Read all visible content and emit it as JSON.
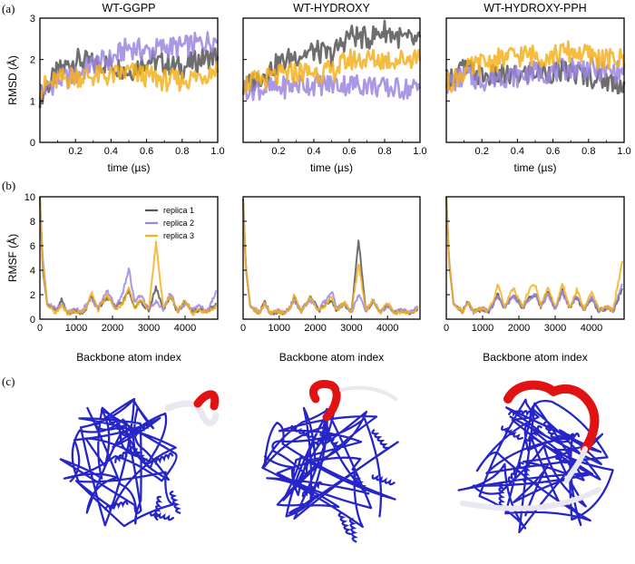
{
  "panel_labels": [
    "(a)",
    "(b)",
    "(c)"
  ],
  "legend": [
    "replica 1",
    "replica 2",
    "replica 3"
  ],
  "colors": {
    "replica1": "#555555",
    "replica2": "#9b86e0",
    "replica3": "#f5b01e",
    "protein_blue": "#2525c8",
    "flex_red": "#e01212",
    "flex_white": "#e8e8ee"
  },
  "rmsd_xlabel": "time (µs)",
  "rmsd_ylabel": "RMSD (Å)",
  "rmsf_xlabel": "Backbone atom index",
  "rmsf_ylabel": "RMSF (Å)",
  "rmsd_xticks": [
    "0.2",
    "0.4",
    "0.6",
    "0.8",
    "1.0"
  ],
  "rmsd_yticks": [
    "0",
    "1",
    "2",
    "3"
  ],
  "rmsf_xticks": [
    "0",
    "1000",
    "2000",
    "3000",
    "4000"
  ],
  "rmsf_yticks": [
    "0",
    "2",
    "4",
    "6",
    "8",
    "10"
  ],
  "structure_icons": [
    "protein-ribbon-icon",
    "protein-ribbon-icon",
    "protein-ribbon-icon"
  ],
  "chart_data": [
    {
      "type": "line",
      "title": "WT-GGPP",
      "xlabel": "time (µs)",
      "ylabel": "RMSD (Å)",
      "xlim": [
        0,
        1.0
      ],
      "ylim": [
        0,
        3
      ],
      "series": [
        {
          "name": "replica 1",
          "x": [
            0.0,
            0.1,
            0.2,
            0.3,
            0.4,
            0.5,
            0.6,
            0.7,
            0.8,
            0.9,
            1.0
          ],
          "values": [
            1.1,
            1.7,
            2.0,
            1.9,
            1.9,
            1.7,
            2.0,
            1.9,
            1.8,
            2.0,
            2.1
          ]
        },
        {
          "name": "replica 2",
          "x": [
            0.0,
            0.1,
            0.2,
            0.3,
            0.4,
            0.5,
            0.6,
            0.7,
            0.8,
            0.9,
            1.0
          ],
          "values": [
            1.2,
            1.5,
            1.6,
            1.9,
            2.0,
            2.3,
            2.2,
            2.3,
            2.3,
            2.4,
            2.5
          ]
        },
        {
          "name": "replica 3",
          "x": [
            0.0,
            0.1,
            0.2,
            0.3,
            0.4,
            0.5,
            0.6,
            0.7,
            0.8,
            0.9,
            1.0
          ],
          "values": [
            1.3,
            1.5,
            1.6,
            1.6,
            1.6,
            1.7,
            1.6,
            1.5,
            1.5,
            1.6,
            1.8
          ]
        }
      ]
    },
    {
      "type": "line",
      "title": "WT-HYDROXY",
      "xlabel": "time (µs)",
      "ylabel": "RMSD (Å)",
      "xlim": [
        0,
        1.0
      ],
      "ylim": [
        0,
        3
      ],
      "series": [
        {
          "name": "replica 1",
          "x": [
            0.0,
            0.1,
            0.2,
            0.3,
            0.4,
            0.5,
            0.6,
            0.7,
            0.8,
            0.9,
            1.0
          ],
          "values": [
            1.3,
            1.6,
            1.9,
            2.1,
            2.2,
            2.1,
            2.6,
            2.5,
            2.7,
            2.5,
            2.4
          ]
        },
        {
          "name": "replica 2",
          "x": [
            0.0,
            0.1,
            0.2,
            0.3,
            0.4,
            0.5,
            0.6,
            0.7,
            0.8,
            0.9,
            1.0
          ],
          "values": [
            1.3,
            1.3,
            1.3,
            1.4,
            1.4,
            1.4,
            1.4,
            1.4,
            1.3,
            1.3,
            1.3
          ]
        },
        {
          "name": "replica 3",
          "x": [
            0.0,
            0.1,
            0.2,
            0.3,
            0.4,
            0.5,
            0.6,
            0.7,
            0.8,
            0.9,
            1.0
          ],
          "values": [
            1.4,
            1.5,
            1.6,
            1.7,
            1.7,
            1.7,
            2.0,
            2.0,
            2.0,
            2.0,
            2.1
          ]
        }
      ]
    },
    {
      "type": "line",
      "title": "WT-HYDROXY-PPH",
      "xlabel": "time (µs)",
      "ylabel": "RMSD (Å)",
      "xlim": [
        0,
        1.0
      ],
      "ylim": [
        0,
        3
      ],
      "series": [
        {
          "name": "replica 1",
          "x": [
            0.0,
            0.1,
            0.2,
            0.3,
            0.4,
            0.5,
            0.6,
            0.7,
            0.8,
            0.9,
            1.0
          ],
          "values": [
            1.5,
            1.8,
            1.6,
            1.6,
            1.6,
            1.7,
            1.7,
            1.7,
            1.6,
            1.5,
            1.4
          ]
        },
        {
          "name": "replica 2",
          "x": [
            0.0,
            0.1,
            0.2,
            0.3,
            0.4,
            0.5,
            0.6,
            0.7,
            0.8,
            0.9,
            1.0
          ],
          "values": [
            1.4,
            1.6,
            1.5,
            1.6,
            1.6,
            1.7,
            1.7,
            1.8,
            1.8,
            1.7,
            1.7
          ]
        },
        {
          "name": "replica 3",
          "x": [
            0.0,
            0.1,
            0.2,
            0.3,
            0.4,
            0.5,
            0.6,
            0.7,
            0.8,
            0.9,
            1.0
          ],
          "values": [
            1.4,
            1.7,
            1.9,
            2.0,
            2.1,
            2.1,
            2.1,
            2.2,
            2.1,
            2.0,
            2.0
          ]
        }
      ]
    },
    {
      "type": "line",
      "xlabel": "Backbone atom index",
      "ylabel": "RMSF (Å)",
      "xlim": [
        0,
        4900
      ],
      "ylim": [
        0,
        10
      ],
      "series": [
        {
          "name": "replica 1",
          "x": [
            0,
            80,
            200,
            450,
            600,
            750,
            1000,
            1150,
            1300,
            1420,
            1600,
            1850,
            2100,
            2300,
            2450,
            2600,
            2800,
            3000,
            3200,
            3400,
            3600,
            3800,
            4000,
            4200,
            4400,
            4600,
            4850
          ],
          "values": [
            10.0,
            4.0,
            1.2,
            0.6,
            1.6,
            0.5,
            0.7,
            0.5,
            1.0,
            2.0,
            0.8,
            1.8,
            0.9,
            1.5,
            2.3,
            1.0,
            1.4,
            0.7,
            2.6,
            0.8,
            1.8,
            0.6,
            1.5,
            0.6,
            0.8,
            0.6,
            1.2
          ]
        },
        {
          "name": "replica 2",
          "x": [
            0,
            80,
            200,
            450,
            600,
            750,
            1000,
            1150,
            1300,
            1420,
            1600,
            1850,
            2100,
            2300,
            2450,
            2600,
            2800,
            3000,
            3200,
            3400,
            3600,
            3800,
            4000,
            4200,
            4400,
            4600,
            4850
          ],
          "values": [
            9.5,
            5.0,
            1.3,
            0.8,
            1.3,
            0.6,
            0.9,
            0.6,
            1.4,
            1.6,
            0.9,
            2.3,
            1.0,
            2.3,
            4.2,
            1.5,
            1.9,
            0.8,
            1.5,
            0.8,
            2.2,
            0.7,
            1.2,
            0.8,
            1.1,
            0.6,
            2.2
          ]
        },
        {
          "name": "replica 3",
          "x": [
            0,
            80,
            200,
            450,
            600,
            750,
            1000,
            1150,
            1300,
            1420,
            1600,
            1850,
            2100,
            2300,
            2450,
            2600,
            2800,
            3000,
            3200,
            3400,
            3600,
            3800,
            4000,
            4200,
            4400,
            4600,
            4850
          ],
          "values": [
            9.8,
            4.5,
            1.1,
            0.5,
            1.2,
            0.5,
            0.6,
            0.5,
            1.0,
            2.2,
            0.7,
            2.0,
            0.8,
            1.4,
            2.6,
            0.9,
            1.6,
            0.7,
            6.3,
            0.9,
            1.9,
            0.6,
            1.6,
            0.5,
            0.7,
            0.6,
            1.0
          ]
        }
      ]
    },
    {
      "type": "line",
      "xlabel": "Backbone atom index",
      "ylabel": "RMSF (Å)",
      "xlim": [
        0,
        4900
      ],
      "ylim": [
        0,
        10
      ],
      "series": [
        {
          "name": "replica 1",
          "x": [
            0,
            80,
            200,
            450,
            600,
            750,
            1000,
            1150,
            1300,
            1420,
            1600,
            1850,
            2100,
            2300,
            2450,
            2600,
            2800,
            3000,
            3200,
            3400,
            3600,
            3800,
            4000,
            4200,
            4400,
            4600,
            4850
          ],
          "values": [
            9.8,
            4.0,
            1.0,
            0.5,
            1.4,
            0.5,
            0.6,
            0.5,
            0.9,
            1.8,
            0.6,
            1.9,
            0.7,
            1.3,
            1.6,
            0.7,
            1.2,
            0.6,
            6.4,
            0.7,
            1.4,
            0.5,
            1.2,
            0.5,
            0.7,
            0.5,
            0.8
          ]
        },
        {
          "name": "replica 2",
          "x": [
            0,
            80,
            200,
            450,
            600,
            750,
            1000,
            1150,
            1300,
            1420,
            1600,
            1850,
            2100,
            2300,
            2450,
            2600,
            2800,
            3000,
            3200,
            3400,
            3600,
            3800,
            4000,
            4200,
            4400,
            4600,
            4850
          ],
          "values": [
            9.6,
            4.2,
            1.1,
            0.6,
            1.2,
            0.5,
            0.7,
            0.5,
            1.0,
            1.5,
            0.7,
            1.6,
            0.8,
            1.6,
            2.3,
            0.9,
            1.3,
            0.6,
            2.0,
            0.7,
            1.5,
            0.6,
            1.0,
            0.6,
            0.8,
            0.5,
            1.0
          ]
        },
        {
          "name": "replica 3",
          "x": [
            0,
            80,
            200,
            450,
            600,
            750,
            1000,
            1150,
            1300,
            1420,
            1600,
            1850,
            2100,
            2300,
            2450,
            2600,
            2800,
            3000,
            3200,
            3400,
            3600,
            3800,
            4000,
            4200,
            4400,
            4600,
            4850
          ],
          "values": [
            9.7,
            4.1,
            1.0,
            0.5,
            1.3,
            0.5,
            0.6,
            0.5,
            0.9,
            2.0,
            0.6,
            1.8,
            0.7,
            1.2,
            1.8,
            0.7,
            1.4,
            0.6,
            4.5,
            0.7,
            1.6,
            0.5,
            1.3,
            0.5,
            0.6,
            0.5,
            0.9
          ]
        }
      ]
    },
    {
      "type": "line",
      "xlabel": "Backbone atom index",
      "ylabel": "RMSF (Å)",
      "xlim": [
        0,
        4900
      ],
      "ylim": [
        0,
        10
      ],
      "series": [
        {
          "name": "replica 1",
          "x": [
            0,
            80,
            200,
            450,
            600,
            750,
            1000,
            1150,
            1300,
            1420,
            1600,
            1850,
            2100,
            2300,
            2450,
            2600,
            2800,
            3000,
            3200,
            3400,
            3600,
            3800,
            4000,
            4200,
            4400,
            4600,
            4850
          ],
          "values": [
            10.0,
            4.5,
            1.2,
            0.6,
            1.5,
            0.6,
            0.8,
            0.6,
            1.2,
            2.0,
            0.9,
            2.0,
            0.9,
            1.8,
            2.0,
            1.0,
            2.3,
            0.8,
            2.4,
            0.9,
            1.8,
            0.7,
            1.7,
            0.7,
            0.9,
            0.7,
            2.5
          ]
        },
        {
          "name": "replica 2",
          "x": [
            0,
            80,
            200,
            450,
            600,
            750,
            1000,
            1150,
            1300,
            1420,
            1600,
            1850,
            2100,
            2300,
            2450,
            2600,
            2800,
            3000,
            3200,
            3400,
            3600,
            3800,
            4000,
            4200,
            4400,
            4600,
            4850
          ],
          "values": [
            9.8,
            4.8,
            1.3,
            0.6,
            1.3,
            0.6,
            0.9,
            0.6,
            1.3,
            1.9,
            0.9,
            1.9,
            1.0,
            1.7,
            2.1,
            1.0,
            2.0,
            0.8,
            2.2,
            0.9,
            1.9,
            0.7,
            1.8,
            0.7,
            1.0,
            0.7,
            3.0
          ]
        },
        {
          "name": "replica 3",
          "x": [
            0,
            80,
            200,
            450,
            600,
            750,
            1000,
            1150,
            1300,
            1420,
            1600,
            1850,
            2100,
            2300,
            2450,
            2600,
            2800,
            3000,
            3200,
            3400,
            3600,
            3800,
            4000,
            4200,
            4400,
            4600,
            4850
          ],
          "values": [
            9.9,
            4.6,
            1.2,
            0.6,
            1.4,
            0.6,
            0.9,
            0.6,
            1.6,
            2.9,
            1.0,
            2.6,
            1.0,
            2.5,
            2.8,
            1.1,
            2.6,
            0.9,
            2.9,
            0.9,
            2.4,
            0.8,
            2.3,
            0.8,
            1.0,
            0.7,
            4.8
          ]
        }
      ]
    }
  ]
}
